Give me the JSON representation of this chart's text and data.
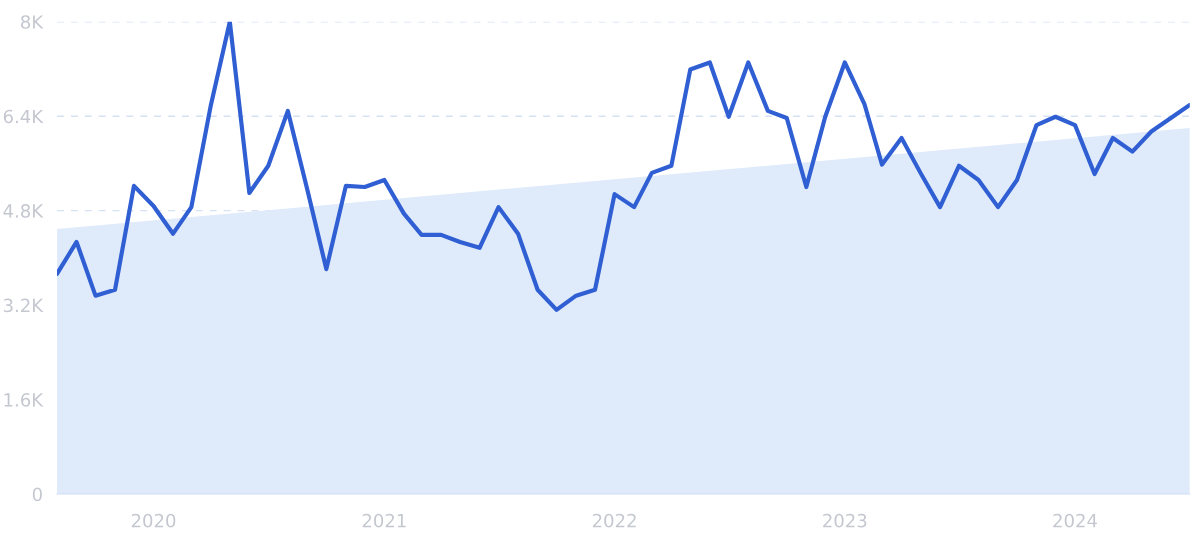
{
  "chart_data": {
    "type": "line",
    "x": [
      "2019-08",
      "2019-09",
      "2019-10",
      "2019-11",
      "2019-12",
      "2020-01",
      "2020-02",
      "2020-03",
      "2020-04",
      "2020-05",
      "2020-06",
      "2020-07",
      "2020-08",
      "2020-09",
      "2020-10",
      "2020-11",
      "2020-12",
      "2021-01",
      "2021-02",
      "2021-03",
      "2021-04",
      "2021-05",
      "2021-06",
      "2021-07",
      "2021-08",
      "2021-09",
      "2021-10",
      "2021-11",
      "2021-12",
      "2022-01",
      "2022-02",
      "2022-03",
      "2022-04",
      "2022-05",
      "2022-06",
      "2022-07",
      "2022-08",
      "2022-09",
      "2022-10",
      "2022-11",
      "2022-12",
      "2023-01",
      "2023-02",
      "2023-03",
      "2023-04",
      "2023-05",
      "2023-06",
      "2023-07",
      "2023-08",
      "2023-09",
      "2023-10",
      "2023-11",
      "2023-12",
      "2024-01",
      "2024-02",
      "2024-03",
      "2024-04",
      "2024-05",
      "2024-06",
      "2024-07"
    ],
    "series": [
      {
        "type": "area",
        "color": "#dfeafb",
        "x": [
          "2019-08",
          "2024-07"
        ],
        "values": [
          4490,
          6200
        ]
      },
      {
        "color": "#2f5fd3",
        "values": [
          3730,
          4270,
          3360,
          3460,
          5220,
          4880,
          4410,
          4860,
          6590,
          8000,
          5100,
          5560,
          6490,
          5150,
          3810,
          5220,
          5200,
          5320,
          4750,
          4390,
          4390,
          4270,
          4170,
          4860,
          4410,
          3460,
          3120,
          3360,
          3460,
          5080,
          4860,
          5440,
          5560,
          7190,
          7310,
          6390,
          7310,
          6490,
          6370,
          5200,
          6390,
          7310,
          6610,
          5580,
          6030,
          5440,
          4860,
          5560,
          5320,
          4860,
          5320,
          6250,
          6390,
          6250,
          5420,
          6030,
          5800,
          6140,
          6370,
          6590
        ]
      }
    ],
    "xlim": [
      "2019-08",
      "2024-07"
    ],
    "xticks": [
      {
        "value": "2020-01",
        "label": "2020"
      },
      {
        "value": "2021-01",
        "label": "2021"
      },
      {
        "value": "2022-01",
        "label": "2022"
      },
      {
        "value": "2023-01",
        "label": "2023"
      },
      {
        "value": "2024-01",
        "label": "2024"
      }
    ],
    "ylim": [
      0,
      8000
    ],
    "yticks": [
      0,
      {
        "value": 1600,
        "label": "1.6K"
      },
      {
        "value": 3200,
        "label": "3.2K"
      },
      {
        "value": 4800,
        "label": "4.8K"
      },
      {
        "value": 6400,
        "label": "6.4K"
      },
      {
        "value": 8000,
        "label": "8K"
      }
    ],
    "grid": "y",
    "line_style": "solid"
  }
}
